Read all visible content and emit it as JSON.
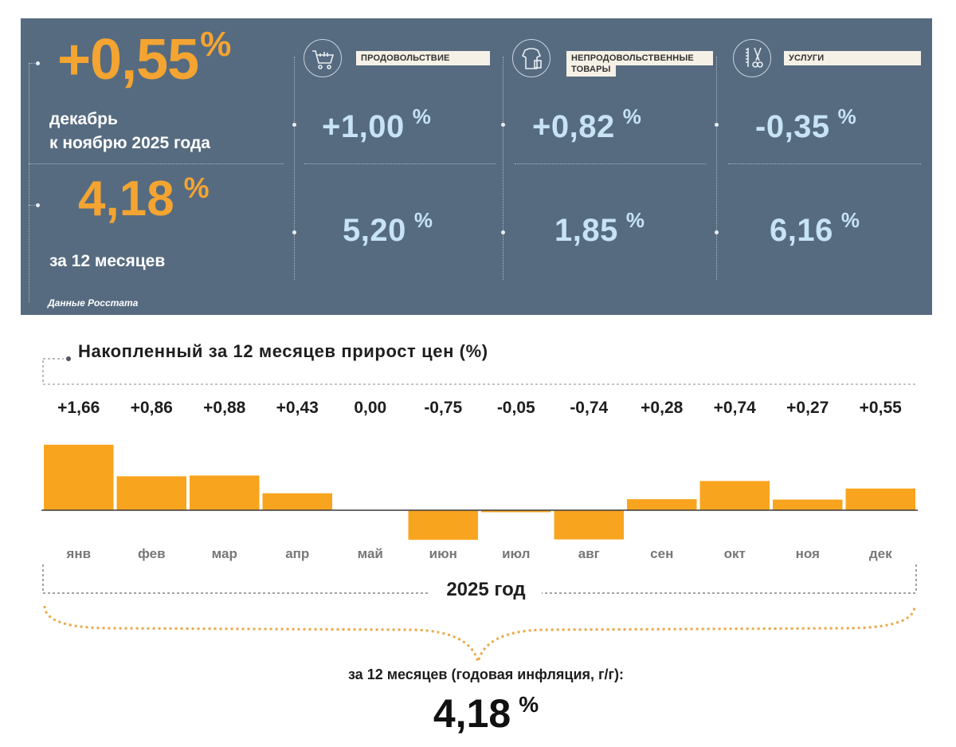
{
  "panel": {
    "monthly": {
      "value": "+0,55",
      "unit": "%",
      "line1": "декабрь",
      "line2": "к ноябрю 2025 года"
    },
    "annual": {
      "value": "4,18",
      "unit": "%",
      "label": "за 12 месяцев"
    },
    "source": "Данные Росстата",
    "categories": [
      {
        "label": "ПРОДОВОЛЬСТВИЕ",
        "icon": "shopping-cart-icon",
        "monthly": "+1,00",
        "annual": "5,20",
        "unit": "%"
      },
      {
        "label_line1": "НЕПРОДОВОЛЬСТВЕННЫЕ",
        "label_line2": "ТОВАРЫ",
        "icon": "clothing-icon",
        "monthly": "+0,82",
        "annual": "1,85",
        "unit": "%"
      },
      {
        "label": "УСЛУГИ",
        "icon": "scissors-comb-icon",
        "monthly": "-0,35",
        "annual": "6,16",
        "unit": "%"
      }
    ],
    "colors": {
      "panel_bg": "#566b80",
      "orange": "#f4a431",
      "light_blue": "#c7e3f4"
    }
  },
  "chart_data": {
    "type": "bar",
    "title": "Накопленный за 12 месяцев прирост цен (%)",
    "categories": [
      "янв",
      "фев",
      "мар",
      "апр",
      "май",
      "июн",
      "июл",
      "авг",
      "сен",
      "окт",
      "ноя",
      "дек"
    ],
    "values": [
      1.66,
      0.86,
      0.88,
      0.43,
      0.0,
      -0.75,
      -0.05,
      -0.74,
      0.28,
      0.74,
      0.27,
      0.55
    ],
    "value_labels": [
      "+1,66",
      "+0,86",
      "+0,88",
      "+0,43",
      "0,00",
      "-0,75",
      "-0,05",
      "-0,74",
      "+0,28",
      "+0,74",
      "+0,27",
      "+0,55"
    ],
    "ylim": [
      -0.8,
      1.7
    ],
    "grid": false,
    "bar_color": "#f9a41e",
    "xlabel": "2025 год",
    "summary_caption": "за 12 месяцев (годовая инфляция, г/г):",
    "summary_value": "4,18",
    "summary_unit": "%"
  }
}
